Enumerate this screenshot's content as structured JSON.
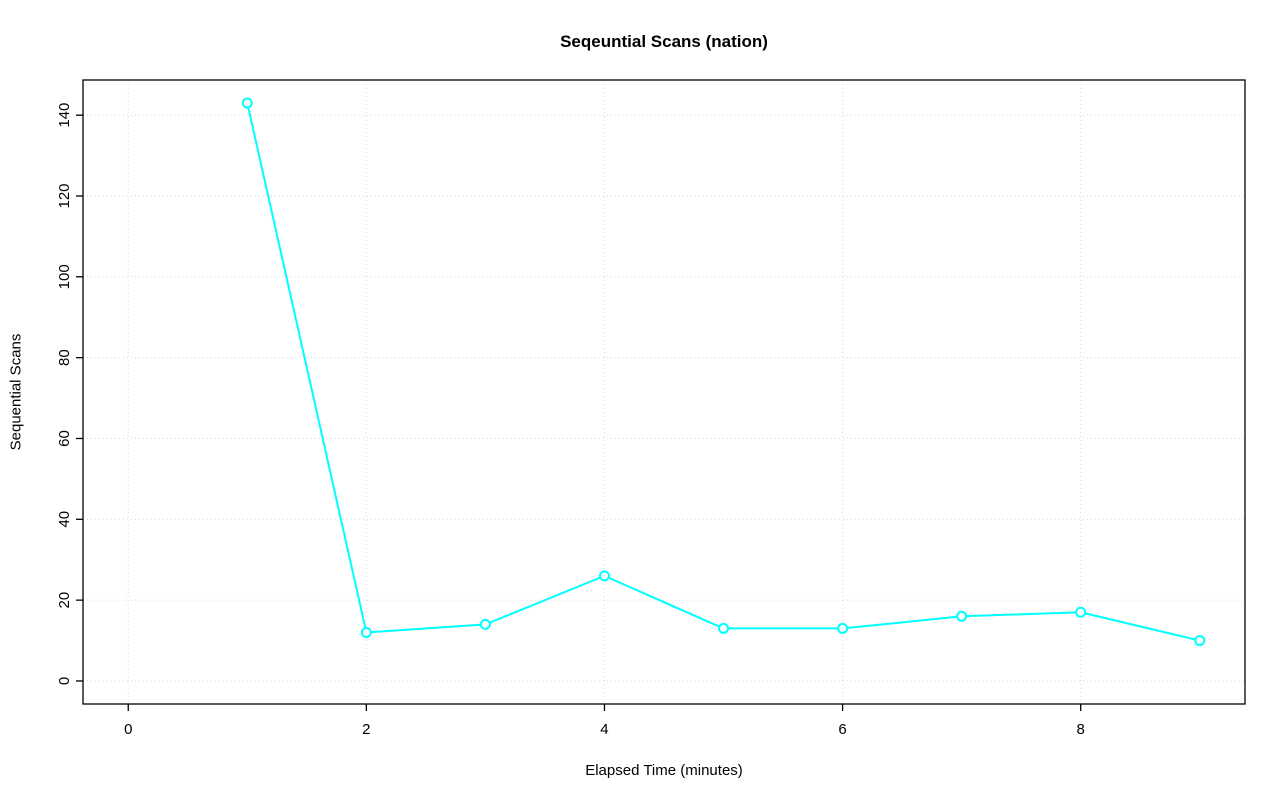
{
  "chart_data": {
    "type": "line",
    "title": "Seqeuntial Scans (nation)",
    "xlabel": "Elapsed Time (minutes)",
    "ylabel": "Sequential Scans",
    "x": [
      1,
      2,
      3,
      4,
      5,
      6,
      7,
      8,
      9
    ],
    "values": [
      143,
      12,
      14,
      26,
      13,
      13,
      16,
      17,
      10
    ],
    "xticks": [
      0,
      2,
      4,
      6,
      8
    ],
    "yticks": [
      0,
      20,
      40,
      60,
      80,
      100,
      120,
      140
    ],
    "xlim": [
      -0.38,
      9.38
    ],
    "ylim": [
      -5.7,
      148.7
    ],
    "grid": true,
    "legend_position": "none",
    "marker": "open-circle",
    "colors": {
      "line": "#00ffff",
      "grid": "#d9d9d9",
      "axis": "#000000",
      "background": "#ffffff"
    }
  }
}
